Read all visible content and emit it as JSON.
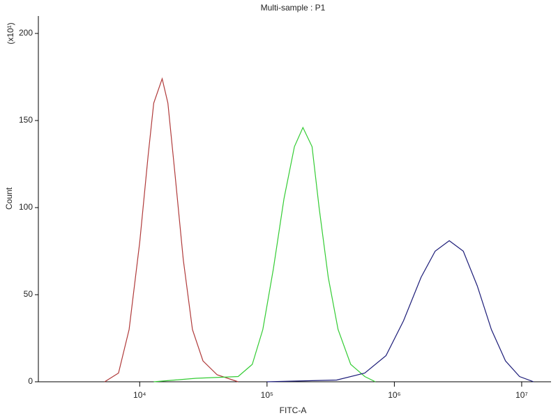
{
  "chart_data": {
    "type": "line",
    "title": "Multi-sample : P1",
    "x_label": "FITC-A",
    "y_label": "Count",
    "y_multiplier": "(x10¹)",
    "xscale": "log",
    "xlim": [
      1600,
      17000000
    ],
    "ylim": [
      0,
      210
    ],
    "xticks": [
      {
        "value": 10000,
        "label": "10⁴"
      },
      {
        "value": 100000,
        "label": "10⁵"
      },
      {
        "value": 1000000,
        "label": "10⁶"
      },
      {
        "value": 10000000,
        "label": "10⁷"
      }
    ],
    "yticks": [
      0,
      50,
      100,
      150,
      200
    ],
    "grid": false,
    "series": [
      {
        "color": "#b03a3a",
        "x": [
          5300,
          6820,
          8260,
          10000,
          11650,
          12890,
          15020,
          16640,
          18890,
          22010,
          25960,
          31400,
          40550,
          59300
        ],
        "values": [
          0,
          5,
          30,
          80,
          130,
          160,
          174,
          160,
          120,
          70,
          30,
          12,
          4,
          0
        ]
      },
      {
        "color": "#33cc33",
        "x": [
          12900,
          27670,
          59300,
          76560,
          92700,
          112200,
          135800,
          164100,
          191400,
          225900,
          256500,
          302700,
          361600,
          454000,
          586000,
          709600
        ],
        "values": [
          0,
          2,
          3,
          10,
          30,
          65,
          105,
          135,
          146,
          135,
          100,
          60,
          30,
          10,
          3,
          0
        ]
      },
      {
        "color": "#1c1c78",
        "x": [
          100000,
          352400,
          586000,
          859700,
          1180000,
          1622000,
          2091000,
          2698000,
          3478000,
          4484000,
          5780000,
          7460000,
          9620000,
          12410000
        ],
        "values": [
          0,
          1,
          5,
          15,
          35,
          60,
          75,
          81,
          75,
          55,
          30,
          12,
          3,
          0
        ]
      }
    ]
  }
}
